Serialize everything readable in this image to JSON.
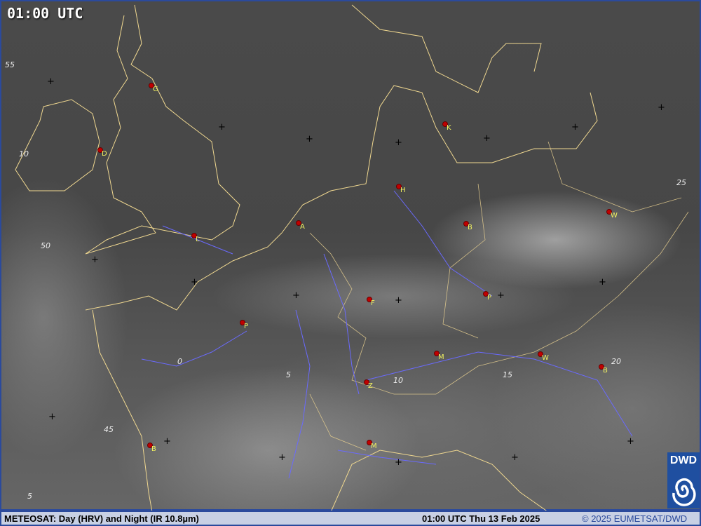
{
  "header": {
    "time_label": "01:00 UTC"
  },
  "cities": [
    {
      "letter": "G"
    },
    {
      "letter": "D"
    },
    {
      "letter": "L"
    },
    {
      "letter": "A"
    },
    {
      "letter": "H"
    },
    {
      "letter": "K"
    },
    {
      "letter": "B"
    },
    {
      "letter": "W"
    },
    {
      "letter": "P"
    },
    {
      "letter": "F"
    },
    {
      "letter": "P"
    },
    {
      "letter": "M"
    },
    {
      "letter": "W"
    },
    {
      "letter": "B"
    },
    {
      "letter": "Z"
    },
    {
      "letter": "M"
    },
    {
      "letter": "B"
    }
  ],
  "grid_labels": [
    "55",
    "10",
    "50",
    "25",
    "0",
    "5",
    "10",
    "15",
    "20",
    "45",
    "5"
  ],
  "footer": {
    "product": "METEOSAT: Day (HRV) and Night (IR 10.8µm)",
    "timestamp": "01:00 UTC Thu 13 Feb 2025",
    "copyright": "© 2025 EUMETSAT/DWD"
  },
  "logo": {
    "text": "DWD"
  },
  "colors": {
    "coastline": "#f0d890",
    "rivers_borders_blue": "#6a6aff",
    "city_marker": "#c00000",
    "city_label": "#f0f060",
    "frame": "#2b4a9c"
  }
}
